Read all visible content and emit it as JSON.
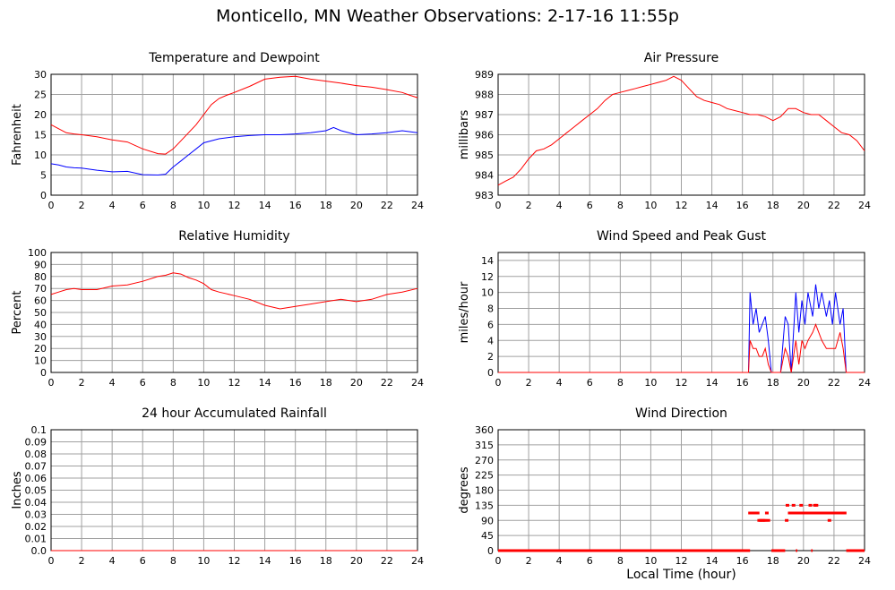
{
  "page": {
    "title": "Monticello, MN Weather Observations: 2-17-16 11:55p",
    "x_axis_title": "Local Time (hour)"
  },
  "colors": {
    "red": "#ff0000",
    "blue": "#0000ff",
    "grid": "#a0a0a0"
  },
  "chart_data": [
    {
      "id": "temp",
      "type": "line",
      "title": "Temperature and Dewpoint",
      "xlabel": "",
      "ylabel": "Fahrenheit",
      "xlim": [
        0,
        24
      ],
      "ylim": [
        0,
        30
      ],
      "xticks": [
        0,
        2,
        4,
        6,
        8,
        10,
        12,
        14,
        16,
        18,
        20,
        22,
        24
      ],
      "yticks": [
        0,
        5,
        10,
        15,
        20,
        25,
        30
      ],
      "grid": true,
      "series": [
        {
          "color": "#ff0000",
          "x": [
            0,
            0.5,
            1,
            1.5,
            2,
            3,
            4,
            5,
            6,
            7,
            7.5,
            8,
            8.5,
            9,
            9.5,
            10,
            10.5,
            11,
            11.5,
            12,
            13,
            14,
            15,
            16,
            17,
            18,
            19,
            20,
            21,
            22,
            23,
            23.5,
            24
          ],
          "values": [
            17.5,
            16.5,
            15.5,
            15.2,
            15,
            14.5,
            13.7,
            13.2,
            11.5,
            10.3,
            10.2,
            11.5,
            13.5,
            15.5,
            17.5,
            20,
            22.5,
            24,
            24.8,
            25.5,
            27,
            28.8,
            29.3,
            29.5,
            28.8,
            28.3,
            27.8,
            27.2,
            26.8,
            26.2,
            25.5,
            24.8,
            24.2
          ]
        },
        {
          "color": "#0000ff",
          "x": [
            0,
            0.5,
            1,
            1.5,
            2,
            3,
            4,
            5,
            6,
            7,
            7.5,
            8,
            8.5,
            9,
            9.5,
            10,
            11,
            12,
            13,
            14,
            15,
            16,
            17,
            18,
            18.5,
            19,
            20,
            21,
            22,
            23,
            24
          ],
          "values": [
            7.8,
            7.5,
            7,
            6.8,
            6.7,
            6.2,
            5.8,
            5.9,
            5.1,
            5,
            5.2,
            7,
            8.5,
            10,
            11.5,
            13,
            14,
            14.5,
            14.8,
            15,
            15,
            15.2,
            15.5,
            16,
            16.8,
            16,
            15,
            15.2,
            15.5,
            16,
            15.5
          ]
        }
      ]
    },
    {
      "id": "pressure",
      "type": "line",
      "title": "Air Pressure",
      "xlabel": "",
      "ylabel": "millibars",
      "xlim": [
        0,
        24
      ],
      "ylim": [
        983,
        989
      ],
      "xticks": [
        0,
        2,
        4,
        6,
        8,
        10,
        12,
        14,
        16,
        18,
        20,
        22,
        24
      ],
      "yticks": [
        983,
        984,
        985,
        986,
        987,
        988,
        989
      ],
      "grid": true,
      "series": [
        {
          "color": "#ff0000",
          "x": [
            0,
            0.5,
            1,
            1.5,
            2,
            2.5,
            3,
            3.5,
            4,
            4.5,
            5,
            5.5,
            6,
            6.5,
            7,
            7.5,
            8,
            8.5,
            9,
            9.5,
            10,
            10.5,
            11,
            11.5,
            12,
            12.5,
            13,
            13.5,
            14,
            14.5,
            15,
            15.5,
            16,
            16.5,
            17,
            17.5,
            18,
            18.5,
            19,
            19.5,
            20,
            20.5,
            21,
            21.5,
            22,
            22.5,
            23,
            23.5,
            24
          ],
          "values": [
            983.5,
            983.7,
            983.9,
            984.3,
            984.8,
            985.2,
            985.3,
            985.5,
            985.8,
            986.1,
            986.4,
            986.7,
            987,
            987.3,
            987.7,
            988,
            988.1,
            988.2,
            988.3,
            988.4,
            988.5,
            988.6,
            988.7,
            988.9,
            988.7,
            988.3,
            987.9,
            987.7,
            987.6,
            987.5,
            987.3,
            987.2,
            987.1,
            987,
            987,
            986.9,
            986.7,
            986.9,
            987.3,
            987.3,
            987.1,
            987,
            987,
            986.7,
            986.4,
            986.1,
            986,
            985.7,
            985.2
          ]
        }
      ]
    },
    {
      "id": "humidity",
      "type": "line",
      "title": "Relative Humidity",
      "xlabel": "",
      "ylabel": "Percent",
      "xlim": [
        0,
        24
      ],
      "ylim": [
        0,
        100
      ],
      "xticks": [
        0,
        2,
        4,
        6,
        8,
        10,
        12,
        14,
        16,
        18,
        20,
        22,
        24
      ],
      "yticks": [
        0,
        10,
        20,
        30,
        40,
        50,
        60,
        70,
        80,
        90,
        100
      ],
      "grid": true,
      "series": [
        {
          "color": "#ff0000",
          "x": [
            0,
            0.5,
            1,
            1.5,
            2,
            3,
            4,
            5,
            6,
            7,
            7.5,
            8,
            8.5,
            9,
            9.5,
            10,
            10.5,
            11,
            12,
            13,
            14,
            15,
            16,
            17,
            18,
            19,
            20,
            21,
            22,
            23,
            24
          ],
          "values": [
            65,
            67,
            69,
            70,
            69,
            69,
            72,
            73,
            76,
            80,
            81,
            83,
            82,
            79,
            77,
            74,
            69,
            67,
            64,
            61,
            56,
            53,
            55,
            57,
            59,
            61,
            59,
            61,
            65,
            67,
            70
          ]
        }
      ]
    },
    {
      "id": "wind",
      "type": "line",
      "title": "Wind Speed and Peak Gust",
      "xlabel": "",
      "ylabel": "miles/hour",
      "xlim": [
        0,
        24
      ],
      "ylim": [
        0,
        15
      ],
      "xticks": [
        0,
        2,
        4,
        6,
        8,
        10,
        12,
        14,
        16,
        18,
        20,
        22,
        24
      ],
      "yticks": [
        0,
        2,
        4,
        6,
        8,
        10,
        12,
        14
      ],
      "grid": true,
      "series": [
        {
          "color": "#0000ff",
          "x": [
            0,
            16.4,
            16.5,
            16.7,
            16.9,
            17.1,
            17.3,
            17.5,
            17.7,
            17.9,
            18,
            18.5,
            18.8,
            19,
            19.2,
            19.5,
            19.7,
            19.9,
            20.1,
            20.3,
            20.6,
            20.8,
            21,
            21.2,
            21.5,
            21.7,
            21.9,
            22.1,
            22.4,
            22.6,
            22.8,
            23,
            24
          ],
          "values": [
            0,
            0,
            10,
            6,
            8,
            5,
            6,
            7,
            4,
            0,
            0,
            0,
            7,
            6,
            0,
            10,
            5,
            9,
            6,
            10,
            7,
            11,
            8,
            10,
            7,
            9,
            6,
            10,
            6,
            8,
            0,
            0,
            0
          ]
        },
        {
          "color": "#ff0000",
          "x": [
            0,
            16.4,
            16.5,
            16.7,
            16.9,
            17.1,
            17.3,
            17.5,
            17.7,
            17.9,
            18,
            18.5,
            18.8,
            19,
            19.2,
            19.5,
            19.7,
            19.9,
            20.1,
            20.3,
            20.6,
            20.8,
            21,
            21.2,
            21.5,
            21.7,
            21.9,
            22.1,
            22.4,
            22.6,
            22.8,
            23,
            24
          ],
          "values": [
            0,
            0,
            4,
            3,
            3,
            2,
            2,
            3,
            1,
            0,
            0,
            0,
            3,
            2,
            0,
            4,
            1,
            4,
            3,
            4,
            5,
            6,
            5,
            4,
            3,
            3,
            3,
            3,
            5,
            3,
            0,
            0,
            0
          ]
        }
      ]
    },
    {
      "id": "rain",
      "type": "line",
      "title": "24 hour Accumulated Rainfall",
      "xlabel": "",
      "ylabel": "Inches",
      "xlim": [
        0,
        24
      ],
      "ylim": [
        0,
        0.1
      ],
      "xticks": [
        0,
        2,
        4,
        6,
        8,
        10,
        12,
        14,
        16,
        18,
        20,
        22,
        24
      ],
      "yticks": [
        "0.0",
        "0.01",
        "0.02",
        "0.03",
        "0.04",
        "0.05",
        "0.06",
        "0.07",
        "0.08",
        "0.09",
        "0.1"
      ],
      "grid": true,
      "series": [
        {
          "color": "#ff0000",
          "x": [
            0,
            24
          ],
          "values": [
            0,
            0
          ]
        }
      ]
    },
    {
      "id": "direction",
      "type": "scatter",
      "title": "Wind Direction",
      "xlabel": "Local Time (hour)",
      "ylabel": "degrees",
      "xlim": [
        0,
        24
      ],
      "ylim": [
        0,
        360
      ],
      "xticks": [
        0,
        2,
        4,
        6,
        8,
        10,
        12,
        14,
        16,
        18,
        20,
        22,
        24
      ],
      "yticks": [
        0,
        45,
        90,
        135,
        180,
        225,
        270,
        315,
        360
      ],
      "grid": true,
      "series": [
        {
          "color": "#ff0000",
          "zero_segments": [
            [
              0,
              16.5
            ],
            [
              17.9,
              18.8
            ],
            [
              19.5,
              19.6
            ],
            [
              20.5,
              20.6
            ],
            [
              22.8,
              24
            ]
          ],
          "x": [
            16.5,
            16.6,
            16.7,
            16.8,
            16.9,
            17.0,
            17.1,
            17.2,
            17.3,
            17.4,
            17.5,
            17.6,
            17.7,
            18.9,
            19.1,
            19.2,
            19.3,
            19.5,
            19.7,
            19.8,
            19.9,
            20.0,
            20.1,
            20.2,
            20.3,
            20.4,
            20.5,
            20.6,
            20.7,
            20.8,
            20.9,
            21.0,
            21.1,
            21.2,
            21.3,
            21.4,
            21.5,
            21.6,
            21.7,
            21.8,
            21.9,
            22.0,
            22.1,
            22.2,
            22.3,
            22.4,
            22.5,
            22.6,
            22.7,
            18.95,
            19.35,
            19.85,
            20.45,
            20.75,
            20.85
          ],
          "values": [
            112,
            112,
            112,
            112,
            112,
            112,
            90,
            90,
            90,
            90,
            90,
            112,
            90,
            90,
            112,
            112,
            112,
            112,
            112,
            112,
            112,
            112,
            112,
            112,
            112,
            112,
            112,
            112,
            112,
            112,
            112,
            112,
            112,
            112,
            112,
            112,
            112,
            112,
            90,
            112,
            112,
            112,
            112,
            112,
            112,
            112,
            112,
            112,
            112,
            135,
            135,
            135,
            135,
            135,
            135
          ]
        }
      ]
    }
  ]
}
